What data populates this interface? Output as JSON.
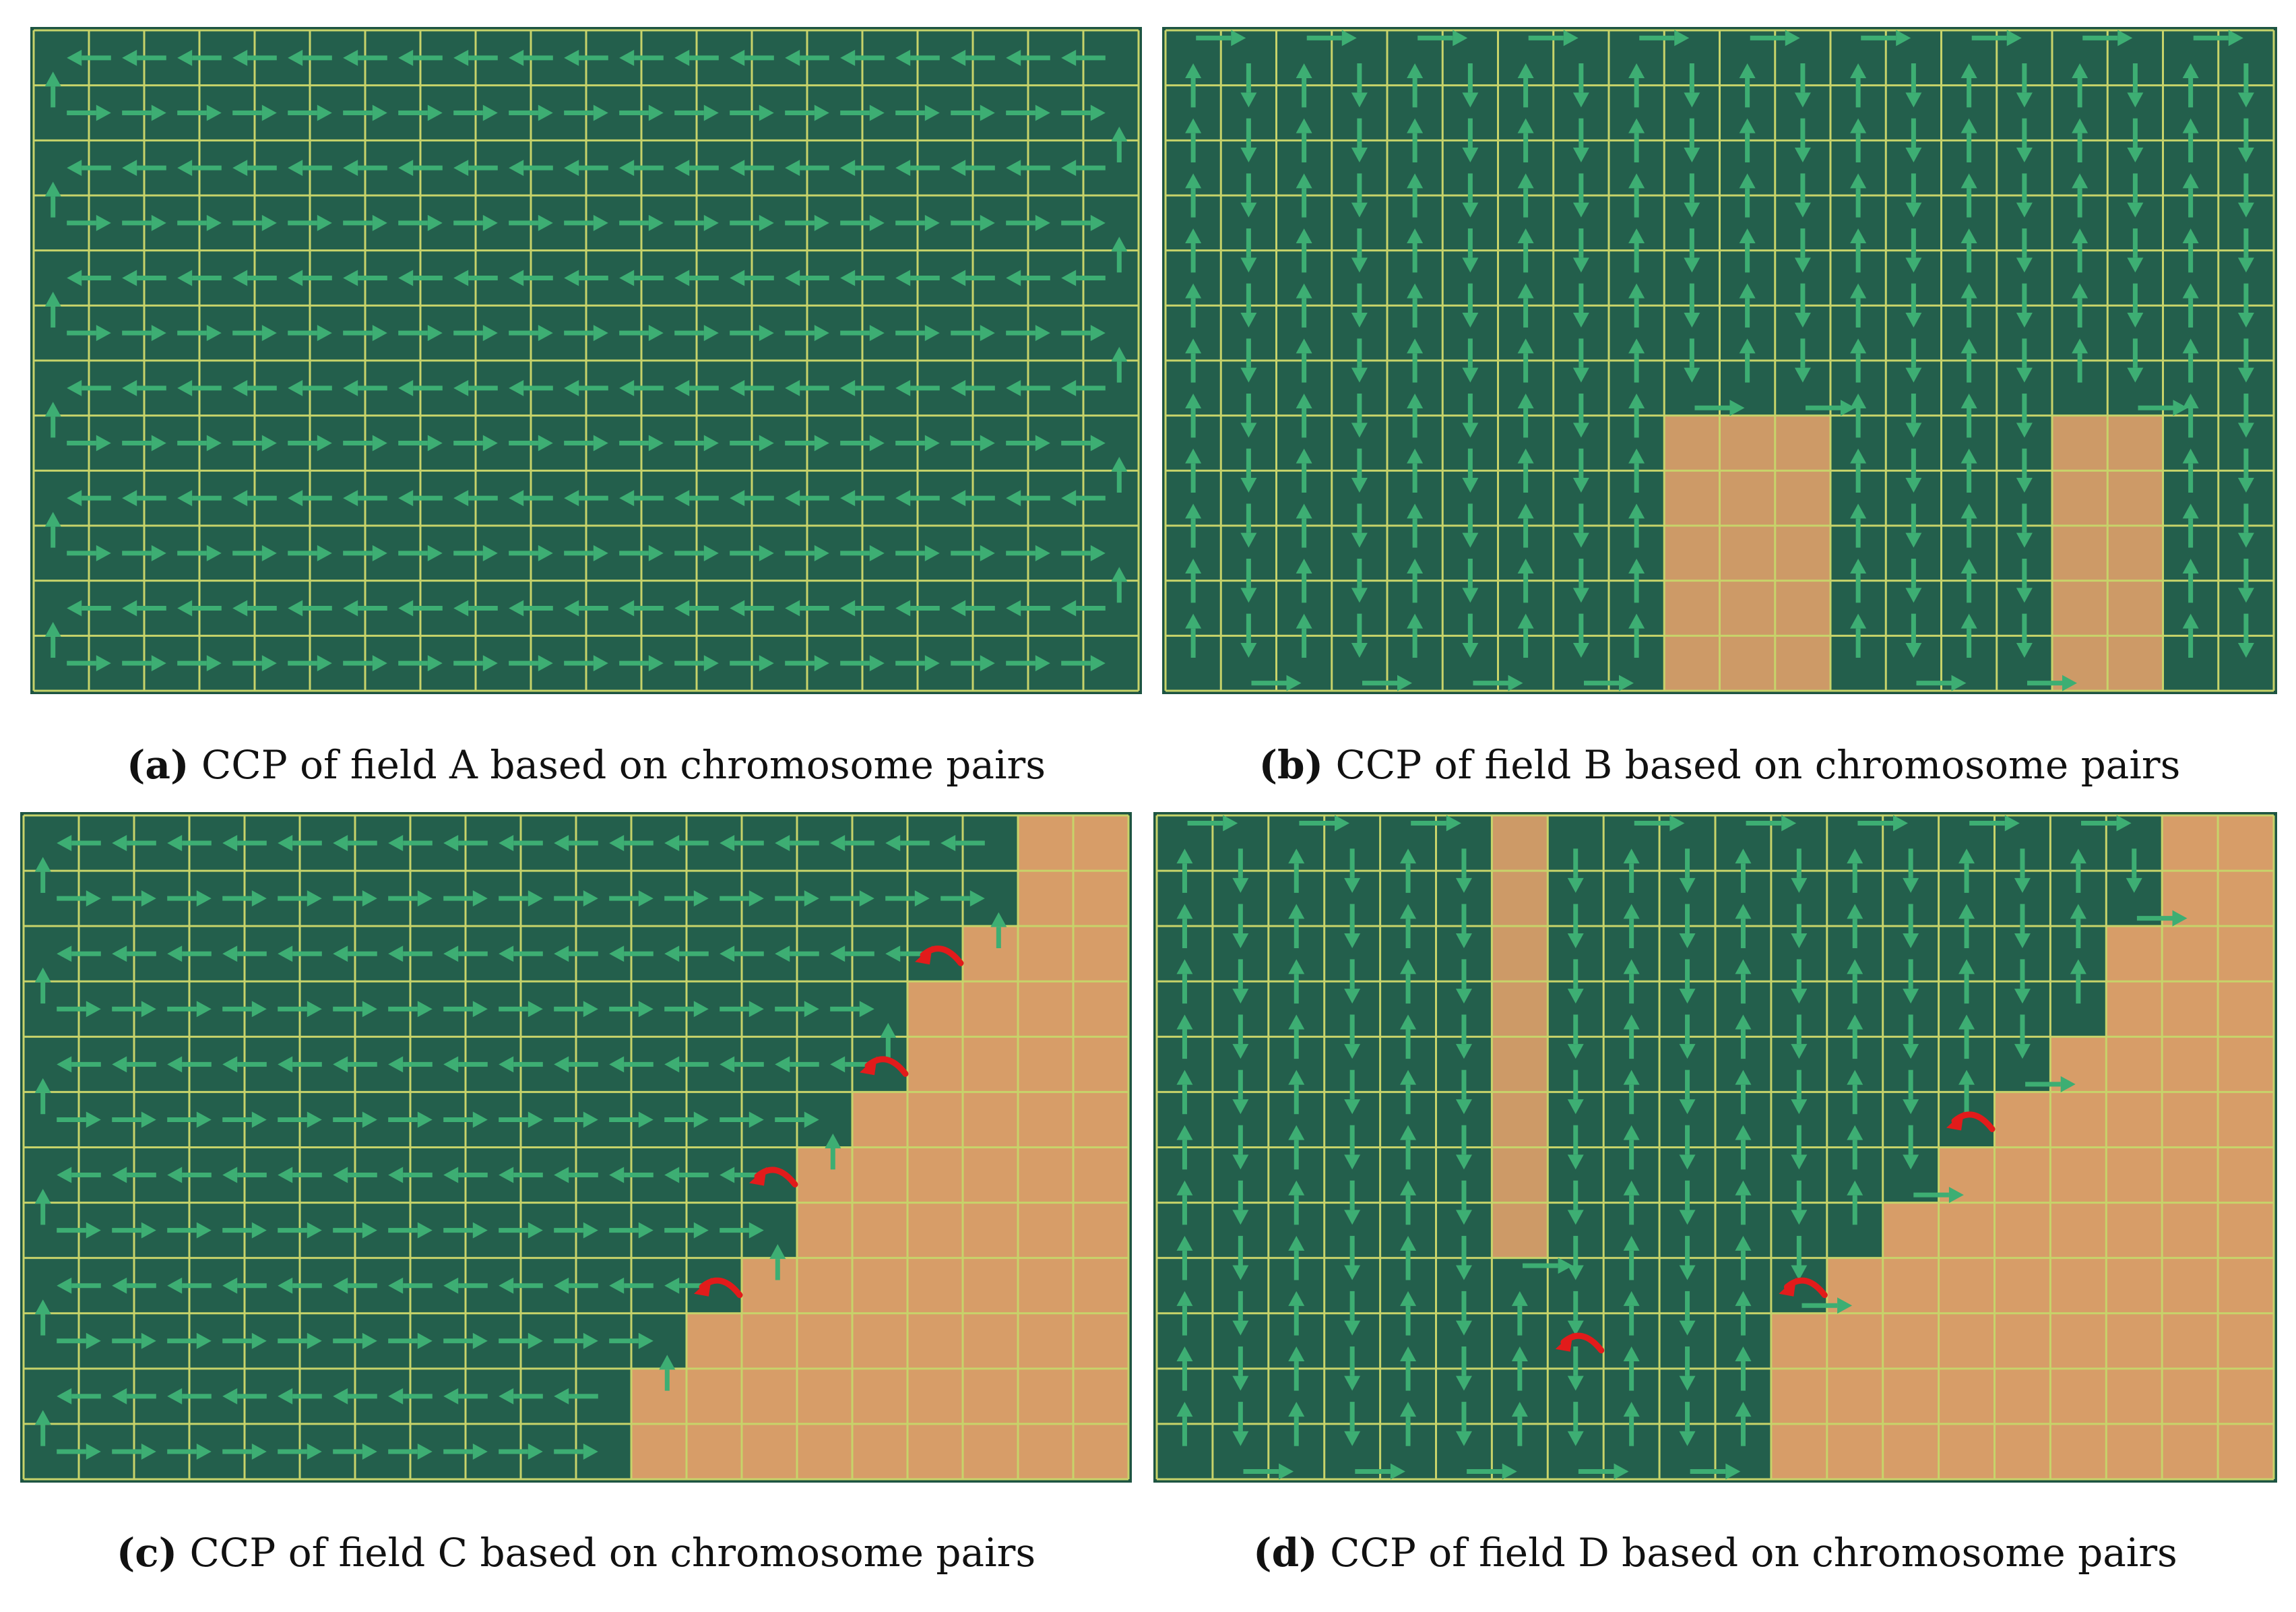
{
  "colors": {
    "field": "#235f4c",
    "field_dark": "#1d5442",
    "grid": "#c7d36a",
    "arrow": "#3dae73",
    "obstacle": "#d79d68",
    "turn": "#e21b1b",
    "frame": "#1a1a1a"
  },
  "icons": {
    "path_arrow": "arrow-icon",
    "turn_marker": "curved-arrow-icon"
  },
  "panels": [
    {
      "key": "a",
      "label": "(a)",
      "caption": "CCP of field A based on chromosome pairs",
      "grid": {
        "cols": 20,
        "rows": 12
      },
      "obstacles": [],
      "turn_markers": []
    },
    {
      "key": "b",
      "label": "(b)",
      "caption": "CCP of field B based on chromosome pairs",
      "grid": {
        "cols": 20,
        "rows": 12
      },
      "obstacles": [
        {
          "col": 9,
          "row": 7,
          "w": 3,
          "h": 5
        },
        {
          "col": 16,
          "row": 7,
          "w": 2,
          "h": 5
        }
      ],
      "turn_markers": []
    },
    {
      "key": "c",
      "label": "(c)",
      "caption": "CCP of field C based on chromosome pairs",
      "grid": {
        "cols": 20,
        "rows": 12
      },
      "obstacles": [],
      "staircase_mask_row_widths": [
        18,
        18,
        17,
        16,
        16,
        15,
        14,
        14,
        13,
        12,
        11,
        11
      ],
      "turn_markers": [
        {
          "col": 16,
          "row": 2
        },
        {
          "col": 15,
          "row": 4
        },
        {
          "col": 13,
          "row": 6
        },
        {
          "col": 12,
          "row": 8
        }
      ]
    },
    {
      "key": "d",
      "label": "(d)",
      "caption": "CCP of field D based on chromosome pairs",
      "grid": {
        "cols": 20,
        "rows": 12
      },
      "obstacles": [
        {
          "col": 6,
          "row": 0,
          "w": 1,
          "h": 8
        }
      ],
      "staircase_mask_row_widths": [
        18,
        18,
        17,
        17,
        16,
        15,
        14,
        13,
        12,
        11,
        11,
        11
      ],
      "turn_markers": [
        {
          "col": 14,
          "row": 5
        },
        {
          "col": 7,
          "row": 9
        },
        {
          "col": 11,
          "row": 8
        }
      ]
    }
  ]
}
